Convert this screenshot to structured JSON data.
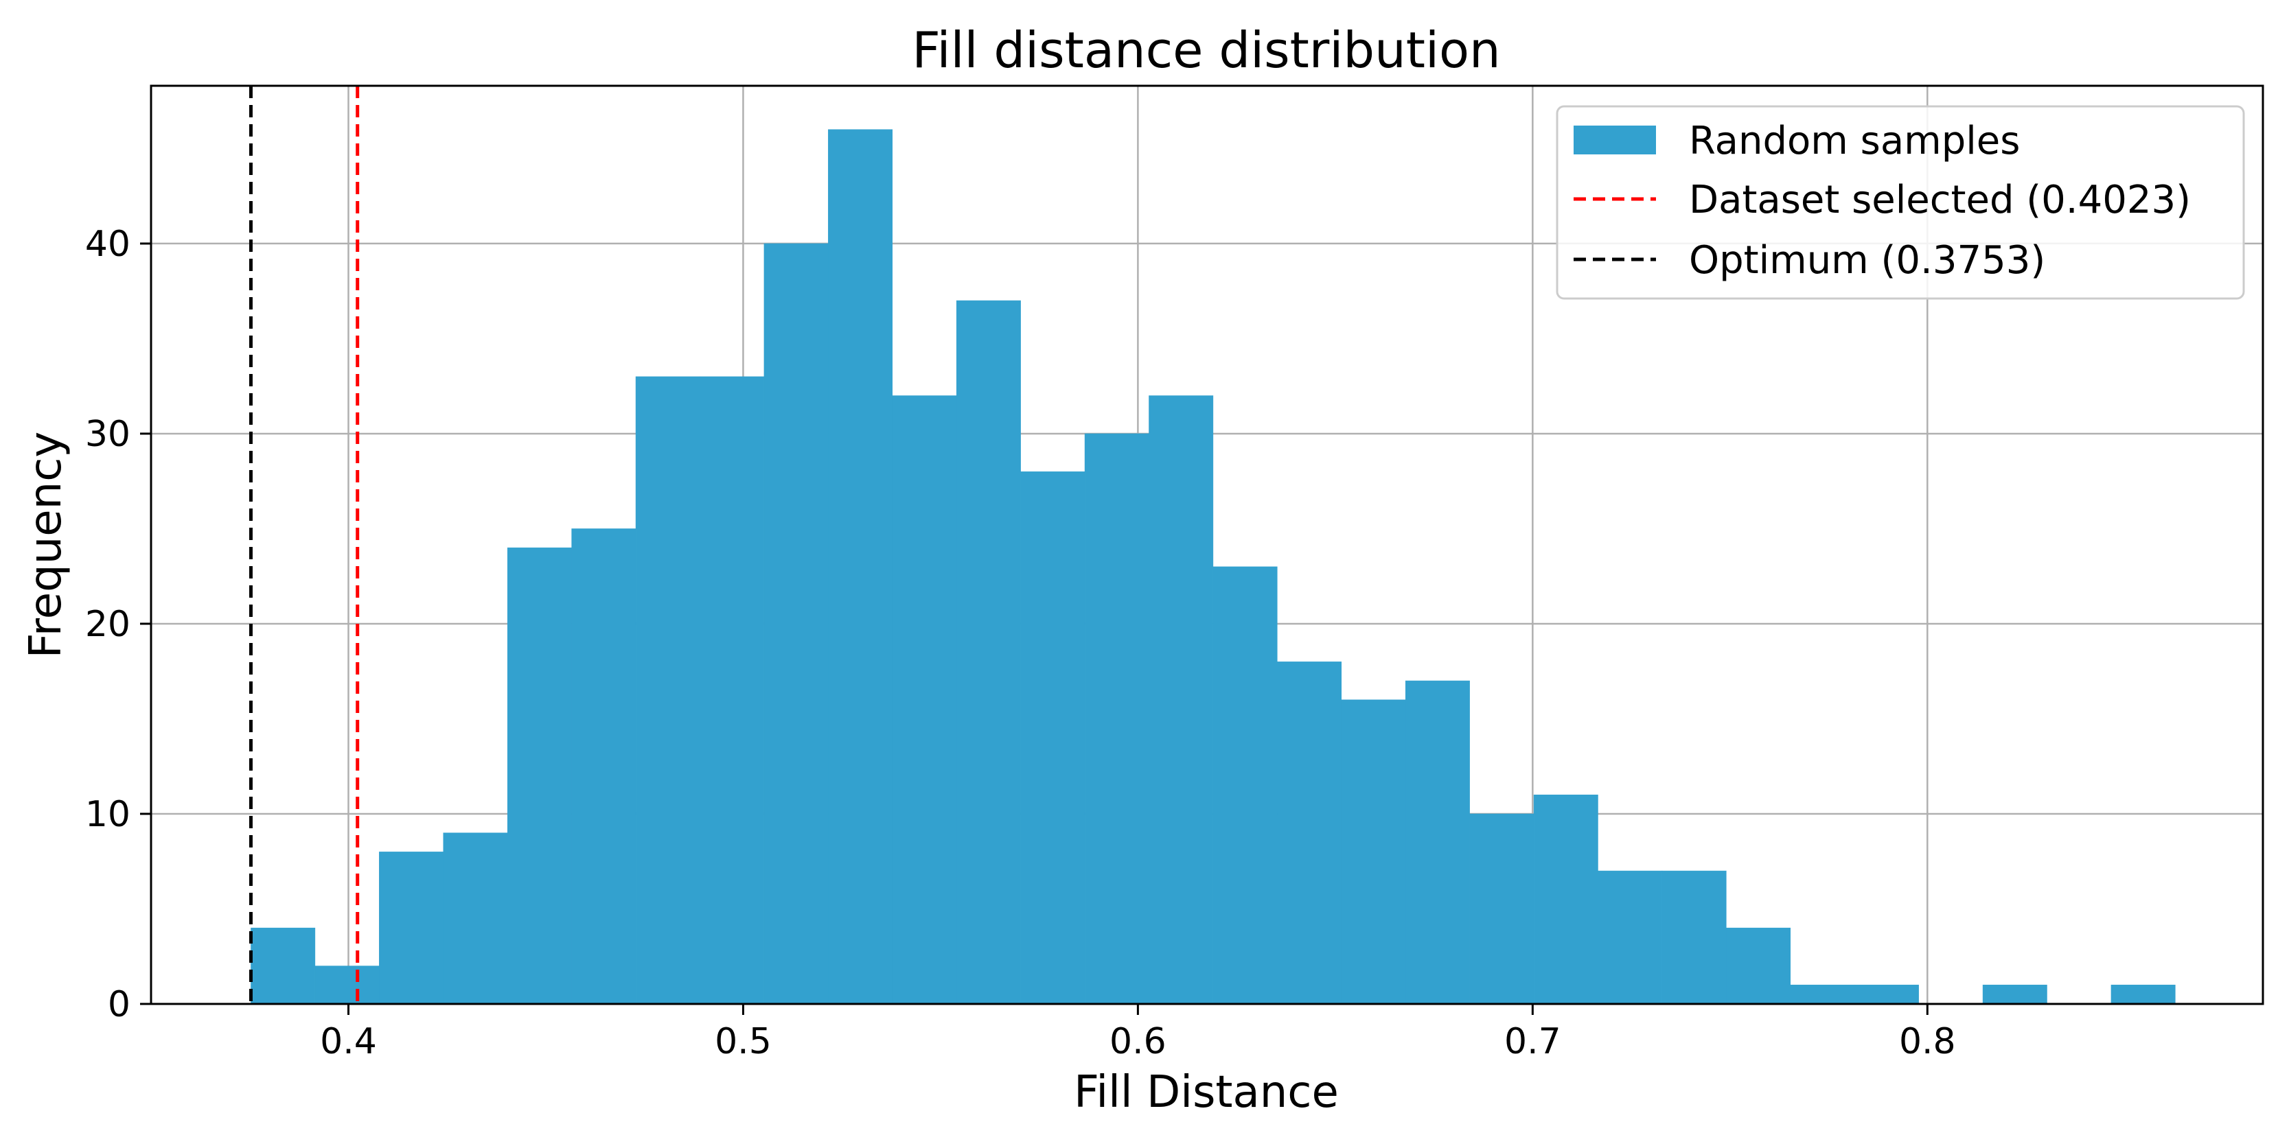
{
  "chart_data": {
    "type": "bar",
    "title": "Fill distance distribution",
    "xlabel": "Fill Distance",
    "ylabel": "Frequency",
    "xlim": [
      0.35,
      0.885
    ],
    "ylim": [
      0,
      48.3
    ],
    "grid": true,
    "legend_position": "top-right",
    "x_ticks": [
      0.4,
      0.5,
      0.6,
      0.7,
      0.8
    ],
    "x_tick_labels": [
      "0.4",
      "0.5",
      "0.6",
      "0.7",
      "0.8"
    ],
    "y_ticks": [
      0,
      10,
      20,
      30,
      40
    ],
    "y_tick_labels": [
      "0",
      "10",
      "20",
      "30",
      "40"
    ],
    "histogram": {
      "name": "Random samples",
      "color": "#33a1cf",
      "bin_start": 0.3753,
      "bin_width": 0.01625,
      "counts": [
        4,
        2,
        8,
        9,
        24,
        25,
        33,
        33,
        40,
        46,
        32,
        37,
        28,
        30,
        32,
        23,
        18,
        16,
        17,
        10,
        11,
        7,
        7,
        4,
        1,
        1,
        0,
        1,
        0,
        1
      ]
    },
    "reference_lines": [
      {
        "name": "Dataset selected (0.4023)",
        "x": 0.4023,
        "color": "#ff0000",
        "style": "dashed"
      },
      {
        "name": "Optimum (0.3753)",
        "x": 0.3753,
        "color": "#000000",
        "style": "dashed"
      }
    ],
    "legend": [
      "Random samples",
      "Dataset selected (0.4023)",
      "Optimum (0.3753)"
    ]
  }
}
